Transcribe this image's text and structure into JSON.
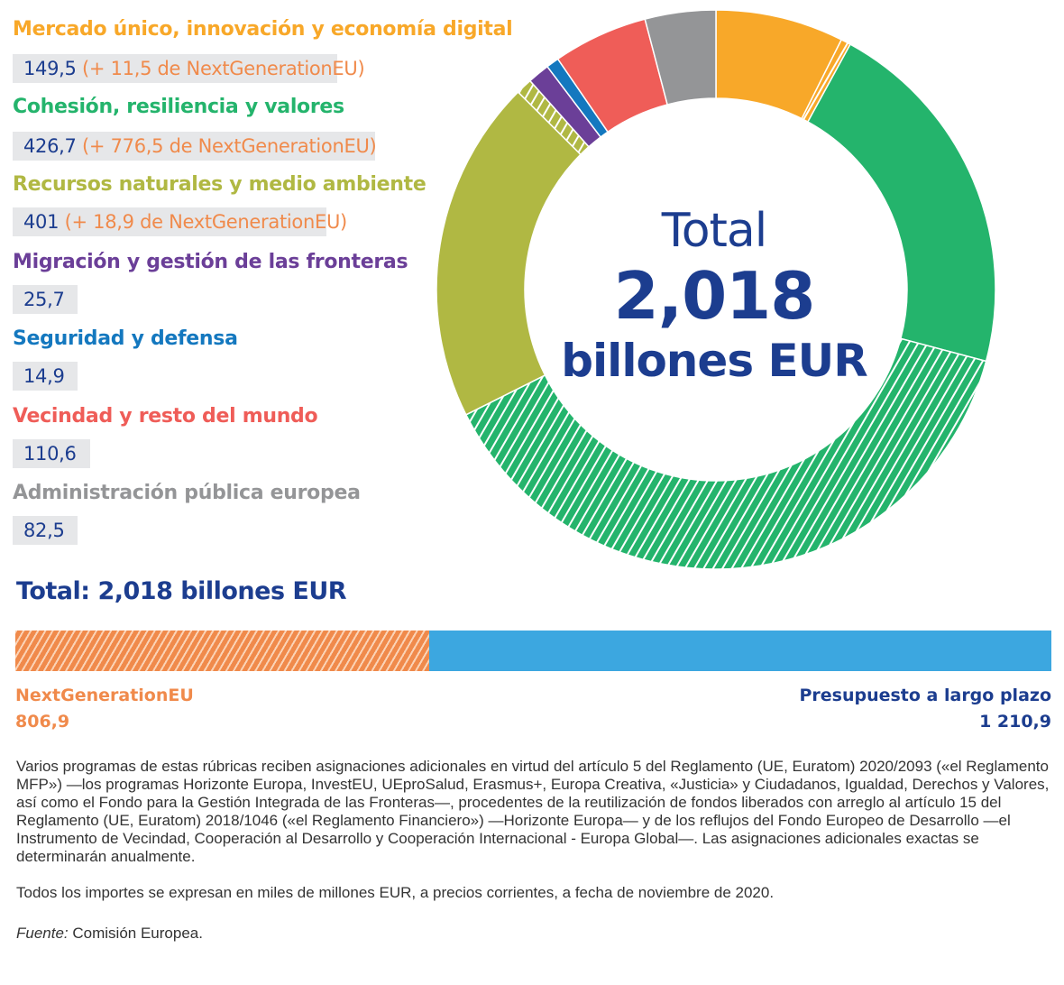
{
  "chart_data": [
    {
      "type": "donut",
      "total_label": "Total",
      "total_value": "2,018",
      "total_unit": "billones EUR",
      "categories": [
        {
          "name": "Mercado único, innovación y economía digital",
          "value": "149,5",
          "extra": "(+ 11,5 de NextGenerationEU)",
          "mff": 149.5,
          "ngeu": 11.5,
          "color": "#f8a829"
        },
        {
          "name": "Cohesión, resiliencia y valores",
          "value": "426,7",
          "extra": "(+ 776,5 de NextGenerationEU)",
          "mff": 426.7,
          "ngeu": 776.5,
          "color": "#24b46c"
        },
        {
          "name": "Recursos naturales y medio ambiente",
          "value": "401",
          "extra": "(+ 18,9 de NextGenerationEU)",
          "mff": 401,
          "ngeu": 18.9,
          "color": "#b0b843"
        },
        {
          "name": "Migración y gestión de las fronteras",
          "value": "25,7",
          "extra": "",
          "mff": 25.7,
          "ngeu": 0,
          "color": "#6b3f98"
        },
        {
          "name": "Seguridad y defensa",
          "value": "14,9",
          "extra": "",
          "mff": 14.9,
          "ngeu": 0,
          "color": "#1478bf"
        },
        {
          "name": "Vecindad y resto del mundo",
          "value": "110,6",
          "extra": "",
          "mff": 110.6,
          "ngeu": 0,
          "color": "#ef5d58"
        },
        {
          "name": "Administración pública europea",
          "value": "82,5",
          "extra": "",
          "mff": 82.5,
          "ngeu": 0,
          "color": "#949597"
        }
      ]
    },
    {
      "type": "stacked-bar",
      "title": "Total: 2,018 billones EUR",
      "series": [
        {
          "name": "NextGenerationEU",
          "value_label": "806,9",
          "value": 806.9,
          "color": "#f08a4b"
        },
        {
          "name": "Presupuesto a largo plazo",
          "value_label": "1 210,9",
          "value": 1210.9,
          "color": "#3ca7e0"
        }
      ]
    }
  ],
  "notes": {
    "paragraph1": "Varios programas de estas rúbricas reciben asignaciones adicionales en virtud del artículo 5 del Reglamento (UE, Euratom) 2020/2093 («el Reglamento MFP») —los programas Horizonte Europa, InvestEU, UEproSalud, Erasmus+, Europa Creativa, «Justicia» y Ciudadanos, Igualdad, Derechos y Valores, así como el Fondo para la Gestión Integrada de las Fronteras—, procedentes de la reutilización de fondos liberados con arreglo al artículo 15 del Reglamento (UE, Euratom) 2018/1046 («el Reglamento Financiero») —Horizonte Europa— y de los reflujos del Fondo Europeo de Desarrollo —el Instrumento de Vecindad, Cooperación al Desarrollo y Cooperación Internacional - Europa Global—. Las asignaciones adicionales exactas se determinarán anualmente.",
    "paragraph2": "Todos los importes se expresan en miles de millones EUR, a precios corrientes, a fecha de noviembre de 2020.",
    "source_label": "Fuente:",
    "source_text": " Comisión Europea."
  }
}
